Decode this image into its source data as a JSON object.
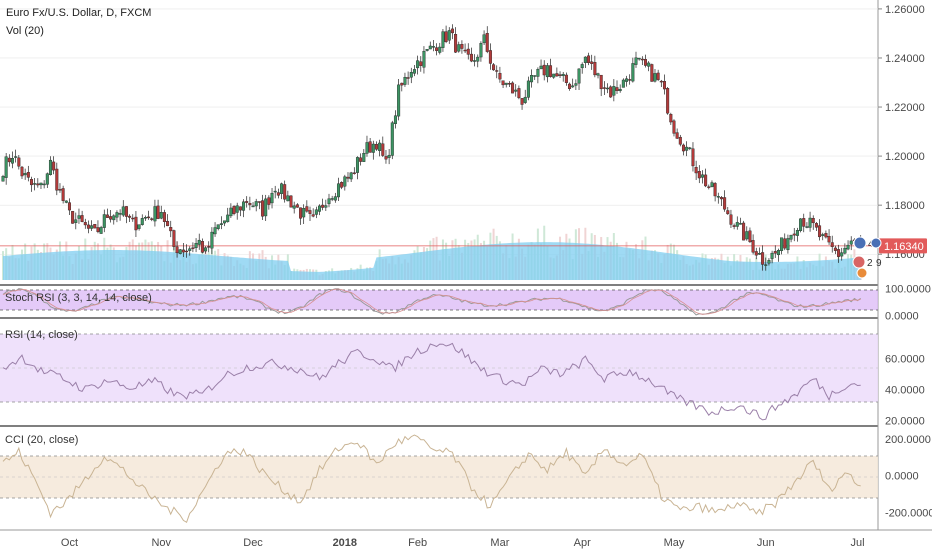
{
  "chart_data": {
    "type": "candlestick",
    "title": "Euro Fx/U.S. Dollar, D, FXCM",
    "volume_label": "Vol (20)",
    "last_price": "1.16340",
    "price_axis": {
      "ticks": [
        "1.26000",
        "1.24000",
        "1.22000",
        "1.20000",
        "1.18000",
        "1.16000"
      ],
      "ylim": [
        1.1495,
        1.262
      ]
    },
    "x_labels": [
      "Oct",
      "Nov",
      "Dec",
      "2018",
      "Feb",
      "Mar",
      "Apr",
      "May",
      "Jun",
      "Jul"
    ],
    "overlay_badges": [
      "4",
      "2",
      "9"
    ],
    "colors": {
      "up": "#3c9463",
      "down": "#b23a3a",
      "volume": "#6fc3e8",
      "price_line": "#e25a5a",
      "panel_border": "#333333"
    },
    "close_anchors": [
      [
        0,
        1.195
      ],
      [
        3,
        1.201
      ],
      [
        6,
        1.193
      ],
      [
        9,
        1.188
      ],
      [
        12,
        1.187
      ],
      [
        15,
        1.197
      ],
      [
        18,
        1.185
      ],
      [
        21,
        1.176
      ],
      [
        25,
        1.172
      ],
      [
        29,
        1.168
      ],
      [
        33,
        1.176
      ],
      [
        37,
        1.178
      ],
      [
        41,
        1.172
      ],
      [
        45,
        1.175
      ],
      [
        50,
        1.178
      ],
      [
        54,
        1.163
      ],
      [
        58,
        1.162
      ],
      [
        62,
        1.165
      ],
      [
        64,
        1.16
      ],
      [
        67,
        1.17
      ],
      [
        72,
        1.176
      ],
      [
        77,
        1.182
      ],
      [
        82,
        1.178
      ],
      [
        86,
        1.188
      ],
      [
        90,
        1.183
      ],
      [
        94,
        1.177
      ],
      [
        98,
        1.173
      ],
      [
        102,
        1.183
      ],
      [
        106,
        1.188
      ],
      [
        110,
        1.192
      ],
      [
        114,
        1.202
      ],
      [
        118,
        1.206
      ],
      [
        121,
        1.196
      ],
      [
        125,
        1.226
      ],
      [
        129,
        1.236
      ],
      [
        133,
        1.241
      ],
      [
        137,
        1.246
      ],
      [
        141,
        1.25
      ],
      [
        144,
        1.243
      ],
      [
        148,
        1.237
      ],
      [
        152,
        1.247
      ],
      [
        156,
        1.232
      ],
      [
        160,
        1.228
      ],
      [
        164,
        1.223
      ],
      [
        168,
        1.232
      ],
      [
        172,
        1.236
      ],
      [
        176,
        1.231
      ],
      [
        180,
        1.229
      ],
      [
        184,
        1.24
      ],
      [
        188,
        1.232
      ],
      [
        192,
        1.226
      ],
      [
        196,
        1.23
      ],
      [
        200,
        1.238
      ],
      [
        204,
        1.235
      ],
      [
        208,
        1.229
      ],
      [
        212,
        1.212
      ],
      [
        216,
        1.203
      ],
      [
        220,
        1.193
      ],
      [
        224,
        1.186
      ],
      [
        228,
        1.179
      ],
      [
        232,
        1.171
      ],
      [
        236,
        1.165
      ],
      [
        240,
        1.158
      ],
      [
        244,
        1.16
      ],
      [
        248,
        1.167
      ],
      [
        252,
        1.175
      ],
      [
        256,
        1.171
      ],
      [
        260,
        1.164
      ],
      [
        264,
        1.16
      ],
      [
        268,
        1.165
      ],
      [
        271,
        1.163
      ]
    ],
    "stoch_rsi": {
      "label": "Stoch RSI (3, 3, 14, 14, close)",
      "ticks": [
        "100.0000",
        "0.0000"
      ],
      "ylim": [
        -5,
        110
      ],
      "bands": [
        80,
        20
      ]
    },
    "rsi": {
      "label": "RSI (14, close)",
      "ticks": [
        "60.0000",
        "40.0000",
        "20.0000"
      ],
      "ylim": [
        17,
        85
      ],
      "bands": [
        70,
        30
      ],
      "anchors": [
        [
          0,
          54
        ],
        [
          6,
          61
        ],
        [
          12,
          52
        ],
        [
          18,
          48
        ],
        [
          26,
          40
        ],
        [
          33,
          46
        ],
        [
          40,
          41
        ],
        [
          48,
          45
        ],
        [
          55,
          36
        ],
        [
          63,
          37
        ],
        [
          70,
          49
        ],
        [
          78,
          55
        ],
        [
          86,
          57
        ],
        [
          94,
          53
        ],
        [
          100,
          47
        ],
        [
          106,
          57
        ],
        [
          112,
          64
        ],
        [
          118,
          60
        ],
        [
          123,
          53
        ],
        [
          130,
          64
        ],
        [
          138,
          71
        ],
        [
          144,
          66
        ],
        [
          150,
          55
        ],
        [
          157,
          47
        ],
        [
          164,
          43
        ],
        [
          170,
          53
        ],
        [
          177,
          50
        ],
        [
          184,
          59
        ],
        [
          190,
          47
        ],
        [
          198,
          52
        ],
        [
          205,
          45
        ],
        [
          212,
          35
        ],
        [
          218,
          30
        ],
        [
          224,
          25
        ],
        [
          232,
          30
        ],
        [
          240,
          22
        ],
        [
          245,
          30
        ],
        [
          250,
          36
        ],
        [
          256,
          47
        ],
        [
          261,
          36
        ],
        [
          266,
          43
        ],
        [
          271,
          44
        ]
      ]
    },
    "cci": {
      "label": "CCI (20, close)",
      "ticks": [
        "200.0000",
        "0.0000",
        "-200.0000"
      ],
      "ylim": [
        -290,
        260
      ],
      "bands": [
        100,
        -100
      ],
      "anchors": [
        [
          0,
          70
        ],
        [
          5,
          130
        ],
        [
          10,
          -20
        ],
        [
          15,
          -200
        ],
        [
          20,
          -140
        ],
        [
          26,
          -20
        ],
        [
          32,
          110
        ],
        [
          38,
          30
        ],
        [
          45,
          -90
        ],
        [
          52,
          -180
        ],
        [
          58,
          -230
        ],
        [
          64,
          -60
        ],
        [
          70,
          120
        ],
        [
          76,
          140
        ],
        [
          82,
          20
        ],
        [
          88,
          -70
        ],
        [
          94,
          -140
        ],
        [
          100,
          30
        ],
        [
          106,
          150
        ],
        [
          112,
          190
        ],
        [
          118,
          60
        ],
        [
          124,
          180
        ],
        [
          130,
          210
        ],
        [
          136,
          140
        ],
        [
          142,
          120
        ],
        [
          148,
          -60
        ],
        [
          154,
          -170
        ],
        [
          160,
          -20
        ],
        [
          166,
          120
        ],
        [
          172,
          30
        ],
        [
          178,
          130
        ],
        [
          184,
          -10
        ],
        [
          190,
          150
        ],
        [
          196,
          60
        ],
        [
          202,
          110
        ],
        [
          208,
          -110
        ],
        [
          214,
          -190
        ],
        [
          220,
          -170
        ],
        [
          226,
          -200
        ],
        [
          232,
          -150
        ],
        [
          238,
          -210
        ],
        [
          244,
          -150
        ],
        [
          250,
          -40
        ],
        [
          256,
          80
        ],
        [
          261,
          -80
        ],
        [
          266,
          20
        ],
        [
          271,
          -60
        ]
      ]
    }
  }
}
